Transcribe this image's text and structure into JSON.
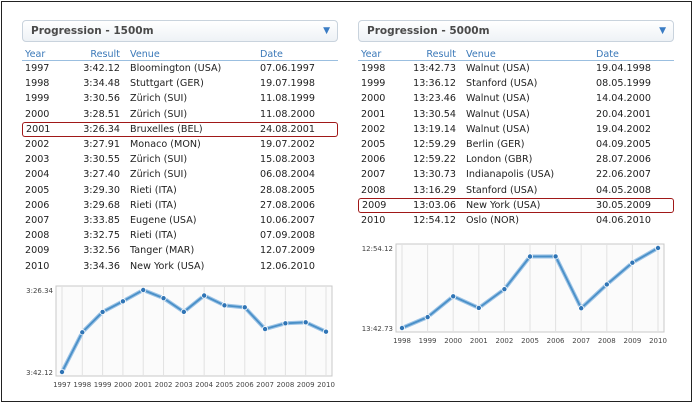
{
  "colors": {
    "highlight": "#a01818",
    "accent": "#3a78b8",
    "line": "#4a90c8"
  },
  "left_panel": {
    "title": "Progression - 1500m",
    "dropdown_icon": "chevron-down-icon",
    "headers": {
      "year": "Year",
      "result": "Result",
      "venue": "Venue",
      "date": "Date"
    },
    "highlighted_row": 4,
    "rows": [
      {
        "year": "1997",
        "result": "3:42.12",
        "venue": "Bloomington (USA)",
        "date": "07.06.1997"
      },
      {
        "year": "1998",
        "result": "3:34.48",
        "venue": "Stuttgart (GER)",
        "date": "19.07.1998"
      },
      {
        "year": "1999",
        "result": "3:30.56",
        "venue": "Zürich (SUI)",
        "date": "11.08.1999"
      },
      {
        "year": "2000",
        "result": "3:28.51",
        "venue": "Zürich (SUI)",
        "date": "11.08.2000"
      },
      {
        "year": "2001",
        "result": "3:26.34",
        "venue": "Bruxelles (BEL)",
        "date": "24.08.2001"
      },
      {
        "year": "2002",
        "result": "3:27.91",
        "venue": "Monaco (MON)",
        "date": "19.07.2002"
      },
      {
        "year": "2003",
        "result": "3:30.55",
        "venue": "Zürich (SUI)",
        "date": "15.08.2003"
      },
      {
        "year": "2004",
        "result": "3:27.40",
        "venue": "Zürich (SUI)",
        "date": "06.08.2004"
      },
      {
        "year": "2005",
        "result": "3:29.30",
        "venue": "Rieti (ITA)",
        "date": "28.08.2005"
      },
      {
        "year": "2006",
        "result": "3:29.68",
        "venue": "Rieti (ITA)",
        "date": "27.08.2006"
      },
      {
        "year": "2007",
        "result": "3:33.85",
        "venue": "Eugene (USA)",
        "date": "10.06.2007"
      },
      {
        "year": "2008",
        "result": "3:32.75",
        "venue": "Rieti (ITA)",
        "date": "07.09.2008"
      },
      {
        "year": "2009",
        "result": "3:32.56",
        "venue": "Tanger (MAR)",
        "date": "12.07.2009"
      },
      {
        "year": "2010",
        "result": "3:34.36",
        "venue": "New York (USA)",
        "date": "12.06.2010"
      }
    ]
  },
  "right_panel": {
    "title": "Progression - 5000m",
    "dropdown_icon": "chevron-down-icon",
    "headers": {
      "year": "Year",
      "result": "Result",
      "venue": "Venue",
      "date": "Date"
    },
    "highlighted_row": 9,
    "rows": [
      {
        "year": "1998",
        "result": "13:42.73",
        "venue": "Walnut (USA)",
        "date": "19.04.1998"
      },
      {
        "year": "1999",
        "result": "13:36.12",
        "venue": "Stanford (USA)",
        "date": "08.05.1999"
      },
      {
        "year": "2000",
        "result": "13:23.46",
        "venue": "Walnut (USA)",
        "date": "14.04.2000"
      },
      {
        "year": "2001",
        "result": "13:30.54",
        "venue": "Walnut (USA)",
        "date": "20.04.2001"
      },
      {
        "year": "2002",
        "result": "13:19.14",
        "venue": "Walnut (USA)",
        "date": "19.04.2002"
      },
      {
        "year": "2005",
        "result": "12:59.29",
        "venue": "Berlin (GER)",
        "date": "04.09.2005"
      },
      {
        "year": "2006",
        "result": "12:59.22",
        "venue": "London (GBR)",
        "date": "28.07.2006"
      },
      {
        "year": "2007",
        "result": "13:30.73",
        "venue": "Indianapolis (USA)",
        "date": "22.06.2007"
      },
      {
        "year": "2008",
        "result": "13:16.29",
        "venue": "Stanford (USA)",
        "date": "04.05.2008"
      },
      {
        "year": "2009",
        "result": "13:03.06",
        "venue": "New York (USA)",
        "date": "30.05.2009"
      },
      {
        "year": "2010",
        "result": "12:54.12",
        "venue": "Oslo (NOR)",
        "date": "04.06.2010"
      }
    ]
  },
  "chart_data": [
    {
      "type": "line",
      "x": [
        "1997",
        "1998",
        "1999",
        "2000",
        "2001",
        "2002",
        "2003",
        "2004",
        "2005",
        "2006",
        "2007",
        "2008",
        "2009",
        "2010"
      ],
      "values": [
        222.12,
        214.48,
        210.56,
        208.51,
        206.34,
        207.91,
        210.55,
        207.4,
        209.3,
        209.68,
        213.85,
        212.75,
        212.56,
        214.36
      ],
      "ytick_labels": [
        "3:26.34",
        "3:42.12"
      ],
      "ylim": [
        206.34,
        222.12
      ],
      "y_reversed": true,
      "grid": true
    },
    {
      "type": "line",
      "x": [
        "1998",
        "1999",
        "2000",
        "2001",
        "2002",
        "2005",
        "2006",
        "2007",
        "2008",
        "2009",
        "2010"
      ],
      "values": [
        822.73,
        816.12,
        803.46,
        810.54,
        799.14,
        779.29,
        779.22,
        810.73,
        796.29,
        783.06,
        774.12
      ],
      "ytick_labels": [
        "12:54.12",
        "13:42.73"
      ],
      "ylim": [
        774.12,
        822.73
      ],
      "y_reversed": true,
      "grid": true
    }
  ]
}
